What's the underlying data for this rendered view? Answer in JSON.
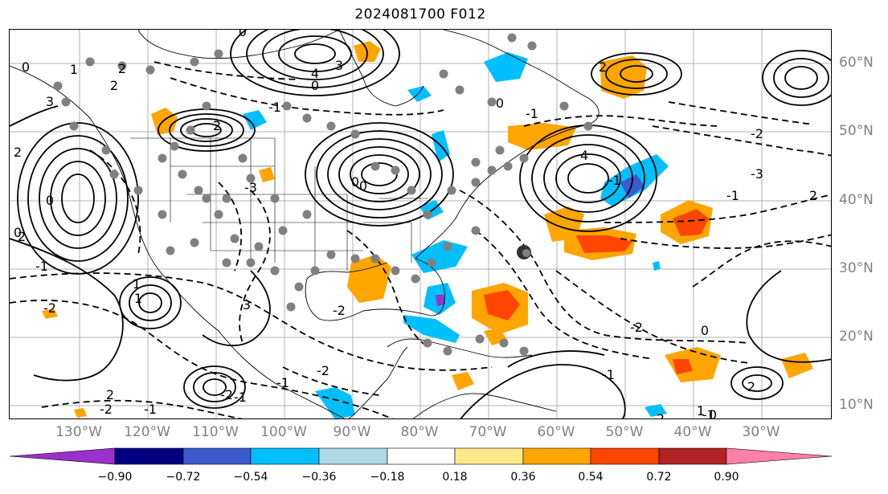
{
  "title": "2024081700 F012",
  "lat_labels": [
    "60°N",
    "50°N",
    "40°N",
    "30°N",
    "20°N",
    "10°N"
  ],
  "lon_labels": [
    "130°W",
    "120°W",
    "110°W",
    "100°W",
    "90°W",
    "80°W",
    "70°W",
    "60°W",
    "50°W",
    "40°W",
    "30°W"
  ],
  "colorbar": {
    "ticks": [
      "−0.90",
      "−0.72",
      "−0.54",
      "−0.36",
      "−0.18",
      "0.18",
      "0.36",
      "0.54",
      "0.72",
      "0.90"
    ],
    "colors": [
      "#9932cc",
      "#000080",
      "#3a5bcd",
      "#00bfff",
      "#add8e6",
      "#ffffff",
      "#ffe98a",
      "#ffa500",
      "#ff4500",
      "#b22222",
      "#ff80a8"
    ]
  },
  "contour_labels": [
    "0",
    "2",
    "0",
    "1",
    "2",
    "3",
    "2",
    "4",
    "3",
    "0",
    "-1",
    "2",
    "0",
    "0",
    "2",
    "-1",
    "1",
    "1",
    "-2",
    "-3",
    "3",
    "-2",
    "-1",
    "4",
    "-1",
    "0",
    "0",
    "-2",
    "-2",
    "-1",
    "2",
    "-1",
    "-2",
    "2",
    "-3",
    "-1",
    "2",
    "1",
    "-1",
    "0",
    "-2",
    "-1",
    "0",
    "2",
    "0",
    "-1",
    "-2",
    "2"
  ],
  "colors": {
    "frame": "#000000",
    "grid": "#b0b0b0",
    "coast": "#000000",
    "station": "#808080"
  }
}
